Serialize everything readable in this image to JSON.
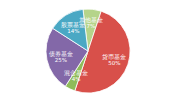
{
  "chart_data": {
    "type": "pie",
    "categories": [
      "其他基金",
      "货币基金",
      "混合基金",
      "债券基金",
      "股票基金"
    ],
    "values": [
      7,
      50,
      4,
      25,
      14
    ],
    "value_labels": [
      "7%",
      "50%",
      "4%",
      "25%",
      "14%"
    ],
    "colors": [
      "#b5d48a",
      "#d8504a",
      "#8fbc5a",
      "#8368a8",
      "#4aa8c4"
    ],
    "data_labels": true
  }
}
